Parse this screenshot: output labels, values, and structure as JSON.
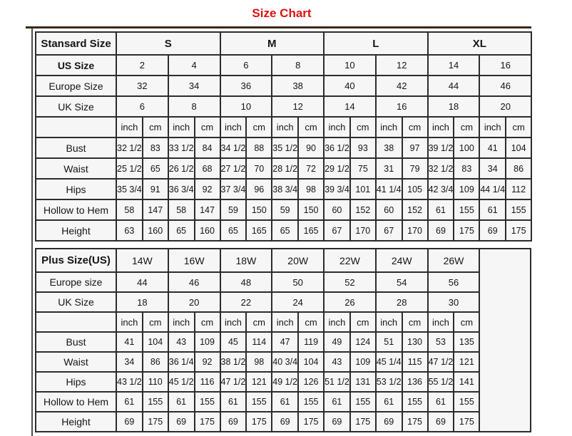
{
  "title": "Size Chart",
  "colors": {
    "title": "#dd1111",
    "border": "#2c2c2c",
    "cell_bg": "#f6f6f6"
  },
  "standard_table": {
    "corner_label": "Stansard Size",
    "size_groups": [
      "S",
      "M",
      "L",
      "XL"
    ],
    "size_rows": [
      {
        "label": "US Size",
        "bold": true,
        "values": [
          "2",
          "4",
          "6",
          "8",
          "10",
          "12",
          "14",
          "16"
        ]
      },
      {
        "label": "Europe Size",
        "bold": false,
        "values": [
          "32",
          "34",
          "36",
          "38",
          "40",
          "42",
          "44",
          "46"
        ]
      },
      {
        "label": "UK Size",
        "bold": false,
        "values": [
          "6",
          "8",
          "10",
          "12",
          "14",
          "16",
          "18",
          "20"
        ]
      }
    ],
    "units": [
      "inch",
      "cm"
    ],
    "measure_rows": [
      {
        "label": "Bust",
        "values": [
          "32 1/2",
          "83",
          "33 1/2",
          "84",
          "34 1/2",
          "88",
          "35 1/2",
          "90",
          "36 1/2",
          "93",
          "38",
          "97",
          "39 1/2",
          "100",
          "41",
          "104"
        ]
      },
      {
        "label": "Waist",
        "values": [
          "25 1/2",
          "65",
          "26 1/2",
          "68",
          "27 1/2",
          "70",
          "28 1/2",
          "72",
          "29 1/2",
          "75",
          "31",
          "79",
          "32 1/2",
          "83",
          "34",
          "86"
        ]
      },
      {
        "label": "Hips",
        "values": [
          "35 3/4",
          "91",
          "36 3/4",
          "92",
          "37 3/4",
          "96",
          "38 3/4",
          "98",
          "39 3/4",
          "101",
          "41 1/4",
          "105",
          "42 3/4",
          "109",
          "44 1/4",
          "112"
        ]
      },
      {
        "label": "Hollow to Hem",
        "values": [
          "58",
          "147",
          "58",
          "147",
          "59",
          "150",
          "59",
          "150",
          "60",
          "152",
          "60",
          "152",
          "61",
          "155",
          "61",
          "155"
        ]
      },
      {
        "label": "Height",
        "values": [
          "63",
          "160",
          "65",
          "160",
          "65",
          "165",
          "65",
          "165",
          "67",
          "170",
          "67",
          "170",
          "69",
          "175",
          "69",
          "175"
        ]
      }
    ]
  },
  "plus_table": {
    "corner_label": "Plus Size(US)",
    "size_groups": [
      "14W",
      "16W",
      "18W",
      "20W",
      "22W",
      "24W",
      "26W"
    ],
    "size_rows": [
      {
        "label": "Europe size",
        "bold": false,
        "values": [
          "44",
          "46",
          "48",
          "50",
          "52",
          "54",
          "56"
        ]
      },
      {
        "label": "UK Size",
        "bold": false,
        "values": [
          "18",
          "20",
          "22",
          "24",
          "26",
          "28",
          "30"
        ]
      }
    ],
    "units": [
      "inch",
      "cm"
    ],
    "measure_rows": [
      {
        "label": "Bust",
        "values": [
          "41",
          "104",
          "43",
          "109",
          "45",
          "114",
          "47",
          "119",
          "49",
          "124",
          "51",
          "130",
          "53",
          "135"
        ]
      },
      {
        "label": "Waist",
        "values": [
          "34",
          "86",
          "36 1/4",
          "92",
          "38 1/2",
          "98",
          "40 3/4",
          "104",
          "43",
          "109",
          "45 1/4",
          "115",
          "47 1/2",
          "121"
        ]
      },
      {
        "label": "Hips",
        "values": [
          "43 1/2",
          "110",
          "45 1/2",
          "116",
          "47 1/2",
          "121",
          "49 1/2",
          "126",
          "51 1/2",
          "131",
          "53 1/2",
          "136",
          "55 1/2",
          "141"
        ]
      },
      {
        "label": "Hollow to Hem",
        "values": [
          "61",
          "155",
          "61",
          "155",
          "61",
          "155",
          "61",
          "155",
          "61",
          "155",
          "61",
          "155",
          "61",
          "155"
        ]
      },
      {
        "label": "Height",
        "values": [
          "69",
          "175",
          "69",
          "175",
          "69",
          "175",
          "69",
          "175",
          "69",
          "175",
          "69",
          "175",
          "69",
          "175"
        ]
      }
    ]
  }
}
